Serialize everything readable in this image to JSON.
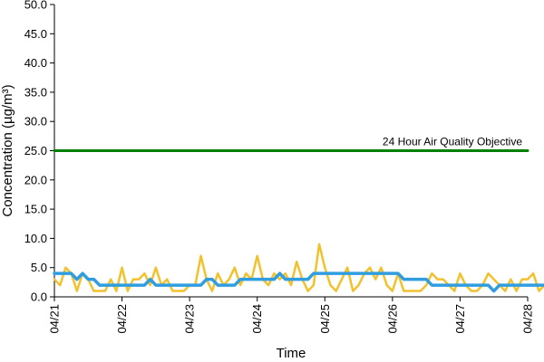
{
  "chart_data": {
    "type": "line",
    "xlabel": "Time",
    "ylabel": "Concentration (µg/m³)",
    "ylim": [
      0,
      50
    ],
    "xlim": [
      "04/21",
      "04/28"
    ],
    "y_ticks": [
      "0.0",
      "5.0",
      "10.0",
      "15.0",
      "20.0",
      "25.0",
      "30.0",
      "35.0",
      "40.0",
      "45.0",
      "50.0"
    ],
    "x_ticks": [
      "04/21",
      "04/22",
      "04/23",
      "04/24",
      "04/25",
      "04/26",
      "04/27",
      "04/28"
    ],
    "grid": false,
    "legend": "none",
    "annotations": [
      {
        "text": "24 Hour Air Quality Objective",
        "value": 25
      }
    ],
    "series": [
      {
        "color": "#008000",
        "x": [
          "04/21",
          "04/28"
        ],
        "values": [
          25,
          25
        ]
      },
      {
        "color": "#F2C12E",
        "x_step_hours": 2,
        "values": [
          3,
          2,
          5,
          4,
          1,
          4,
          3,
          1,
          1,
          1,
          3,
          1,
          5,
          1,
          3,
          3,
          4,
          2,
          5,
          2,
          3,
          1,
          1,
          1,
          2,
          2,
          7,
          3,
          1,
          4,
          2,
          3,
          5,
          2,
          4,
          3,
          7,
          3,
          2,
          4,
          3,
          4,
          2,
          6,
          3,
          1,
          2,
          9,
          5,
          2,
          1,
          3,
          5,
          1,
          2,
          4,
          5,
          3,
          5,
          2,
          1,
          4,
          1,
          1,
          1,
          1,
          2,
          4,
          3,
          3,
          2,
          1,
          4,
          2,
          1,
          1,
          2,
          4,
          3,
          2,
          1,
          3,
          1,
          3,
          3,
          4,
          1,
          2,
          3,
          4,
          5,
          6,
          2,
          1,
          2,
          3
        ]
      },
      {
        "color": "#2F9DE0",
        "x_step_hours": 2,
        "values": [
          4,
          4,
          4,
          4,
          3,
          4,
          3,
          3,
          2,
          2,
          2,
          2,
          2,
          2,
          2,
          2,
          2,
          3,
          2,
          2,
          2,
          2,
          2,
          2,
          2,
          2,
          2,
          3,
          3,
          2,
          2,
          2,
          2,
          3,
          3,
          3,
          3,
          3,
          3,
          3,
          4,
          3,
          3,
          3,
          3,
          3,
          4,
          4,
          4,
          4,
          4,
          4,
          4,
          4,
          4,
          4,
          4,
          4,
          4,
          4,
          4,
          4,
          3,
          3,
          3,
          3,
          3,
          2,
          2,
          2,
          2,
          2,
          2,
          2,
          2,
          2,
          2,
          2,
          1,
          2,
          2,
          2,
          2,
          2,
          2,
          2,
          2,
          2,
          2,
          2,
          2,
          2,
          2,
          2,
          2,
          2
        ]
      }
    ]
  }
}
